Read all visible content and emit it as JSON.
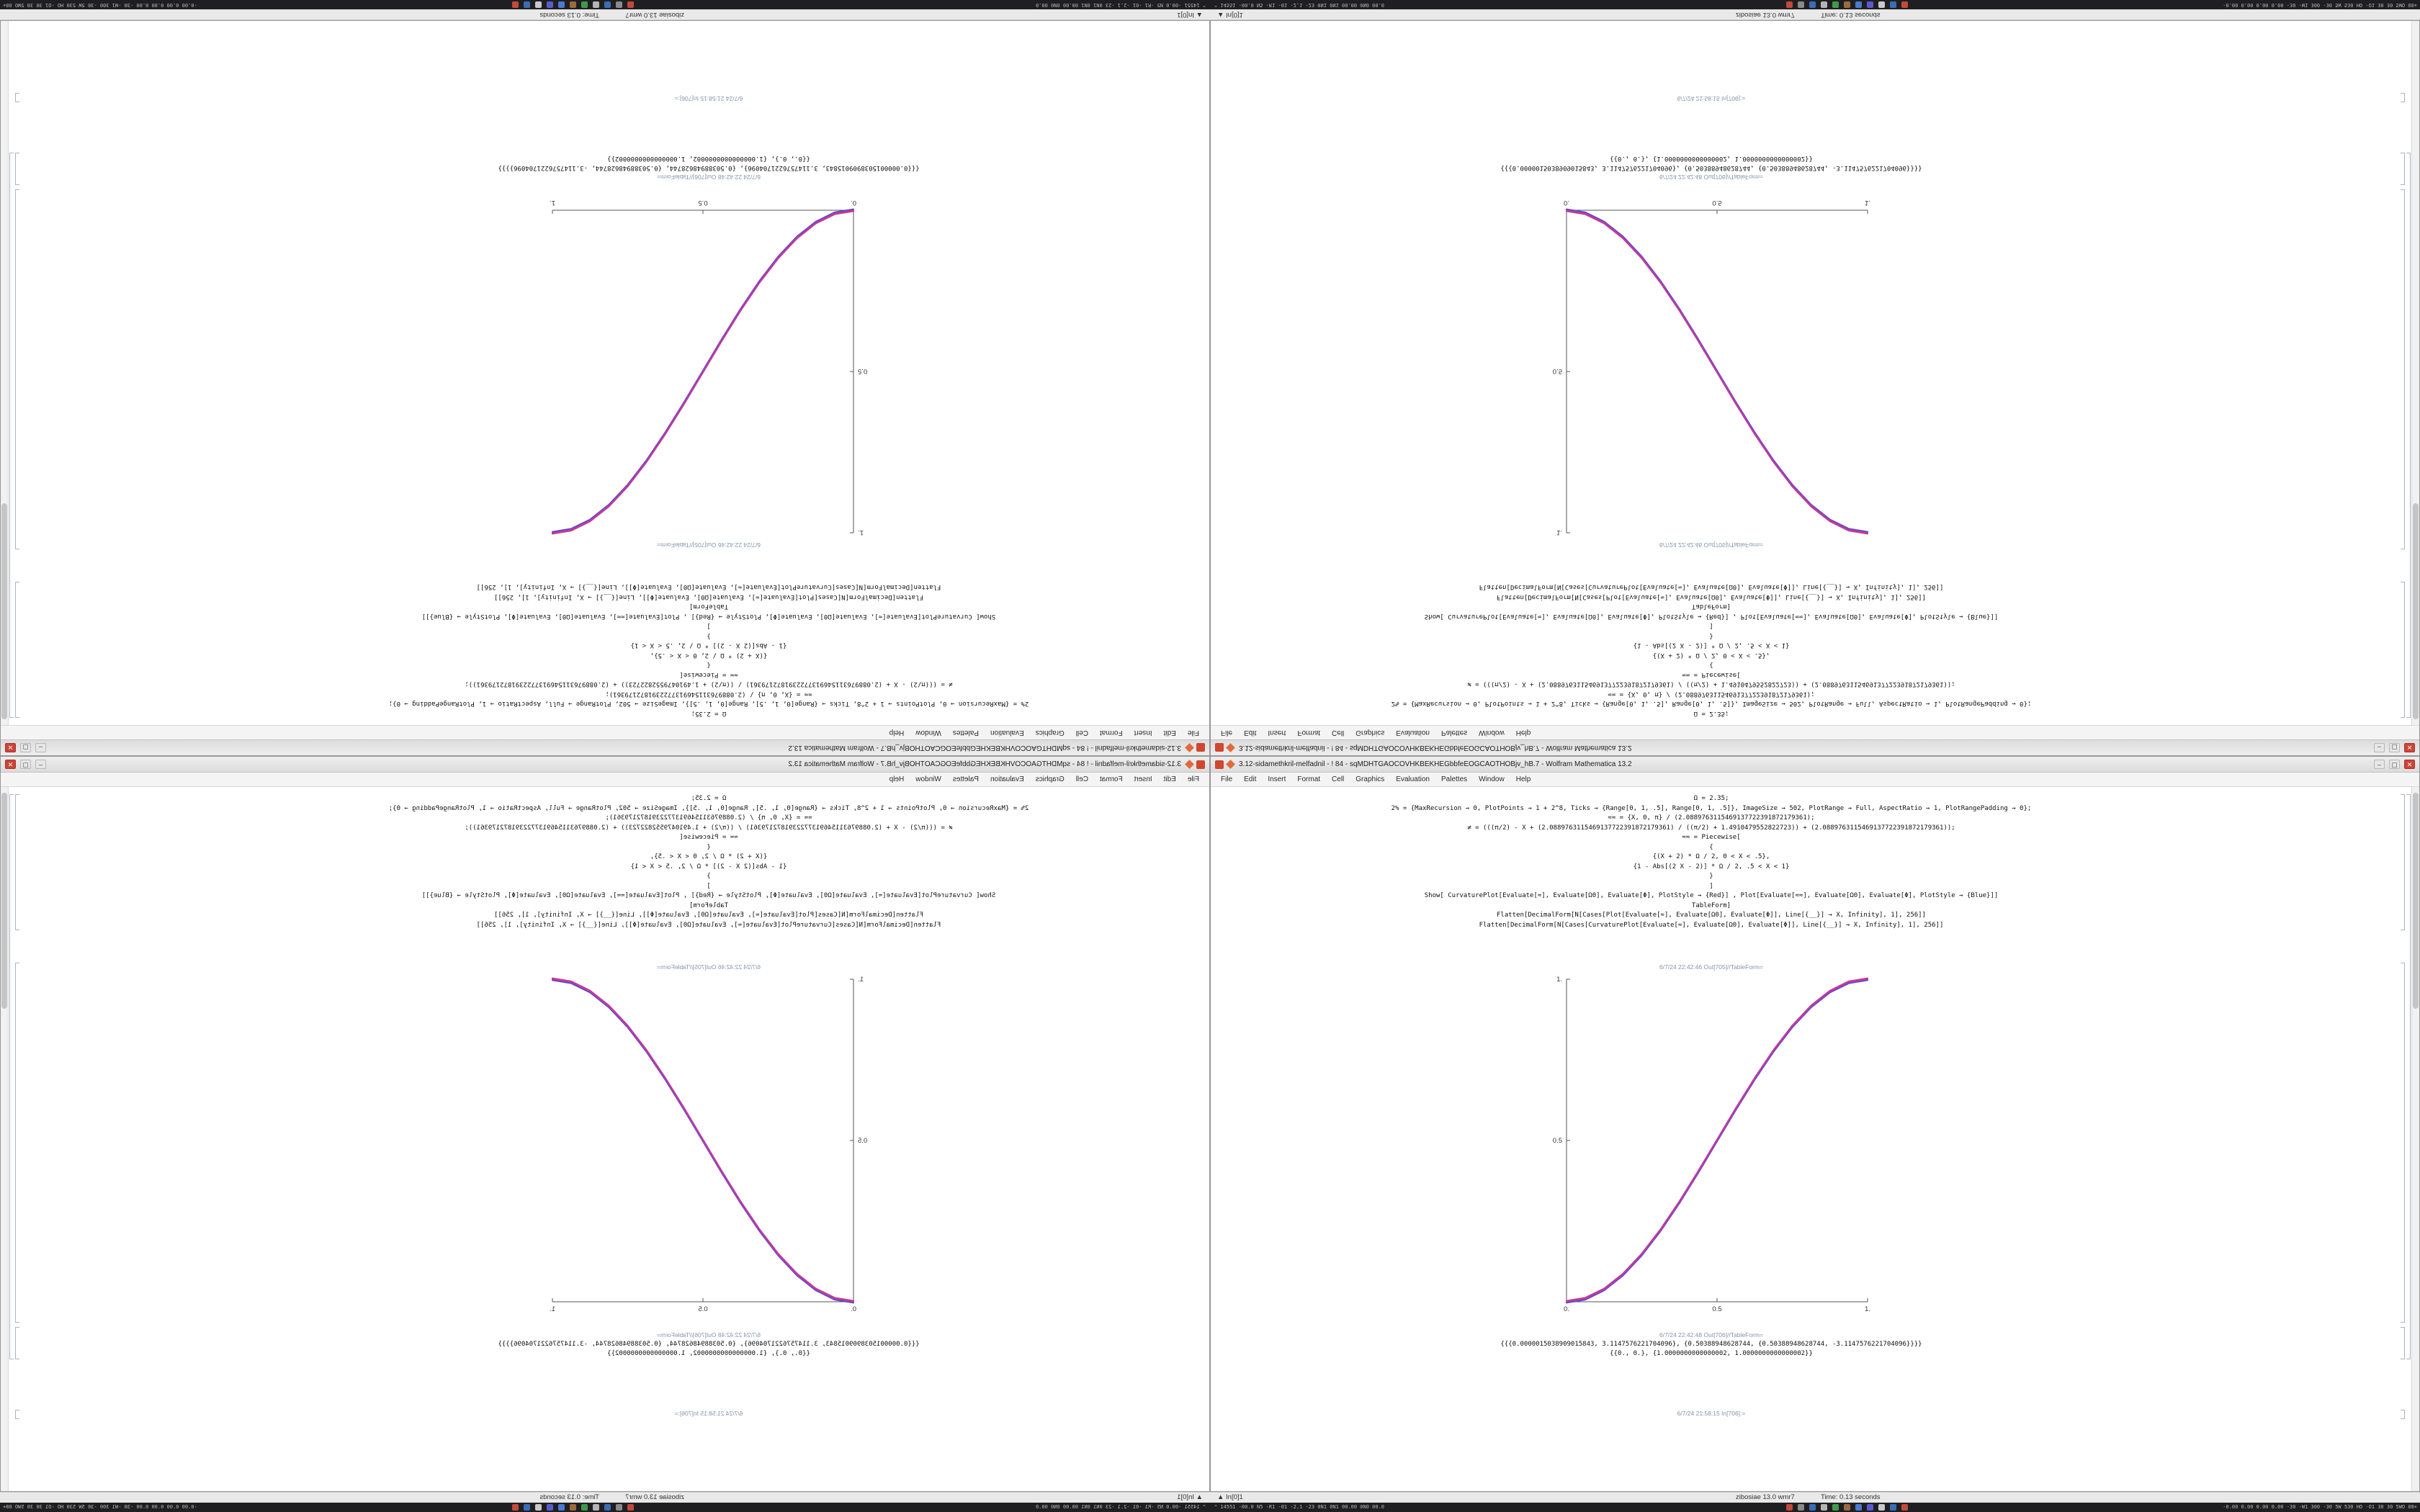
{
  "taskbar": {
    "left_text": "⌃ 14551   -00.0 N5 -R1 -01 -2.1 -23 0N1 0N1 00.00 0N0 00.0",
    "right_text": "-0.00 0.00 0.00 0.00 -30 -W1 300 -30 5W 530 HO -O1 30 30 5WO 08+",
    "icons": [
      {
        "name": "taskbar-icon-red-app",
        "color": "#c14a3a"
      },
      {
        "name": "taskbar-icon-gray-app",
        "color": "#8a8a8a"
      },
      {
        "name": "taskbar-icon-blue-app",
        "color": "#3a6db5"
      },
      {
        "name": "taskbar-icon-silver-app",
        "color": "#b5b5b5"
      },
      {
        "name": "taskbar-icon-green-app",
        "color": "#3f9b4a"
      },
      {
        "name": "taskbar-icon-brown-app",
        "color": "#9b6a3f"
      },
      {
        "name": "taskbar-icon-blue2-app",
        "color": "#4a7ad0"
      },
      {
        "name": "taskbar-icon-indigo-app",
        "color": "#5a5ad0"
      },
      {
        "name": "taskbar-icon-silver2-app",
        "color": "#c9c9c9"
      },
      {
        "name": "taskbar-icon-blue3-app",
        "color": "#3a6db5"
      },
      {
        "name": "taskbar-icon-red2-app",
        "color": "#c14a3a"
      }
    ]
  },
  "statusbar": {
    "left_text": "▲ In[0]1",
    "kernel_text": "zibosiae 13.0 wmr7",
    "time_text": "Time: 0.13 seconds"
  },
  "window": {
    "title": "3.12-sidamethkril-melfadnil - ! 84 - sqMDHTGAOCOVHKBEKHEGbbfeEOGCAOTHOBjv_hB.7 - Wolfram Mathematica 13.2",
    "controls": {
      "minimize": "–",
      "maximize": "▢",
      "close": "✕"
    },
    "menu": [
      "File",
      "Edit",
      "Insert",
      "Format",
      "Cell",
      "Graphics",
      "Evaluation",
      "Palettes",
      "Window",
      "Help"
    ]
  },
  "notebook": {
    "input_lines": [
      "Ω = 2.35;",
      "2% = {MaxRecursion → 0, PlotPoints → 1 + 2^8, Ticks → {Range[0, 1, .5], Range[0, 1, .5]}, ImageSize → 502, PlotRange → Full, AspectRatio → 1, PlotRangePadding → 0};",
      "≈≈ = {X, 0, π} / (2.0889763115469137722391872179361);",
      "≠ = (((π/2) - X + (2.0889763115469137722391872179361) / ((π/2) + 1.4910479552822723)) + (2.0889763115469137722391872179361));",
      "≈≈ = Piecewise[",
      "{",
      "{(X + 2) * Ω / 2, 0 < X < .5},",
      "{1 - Abs[(2 X - 2)] * Ω / 2, .5 < X < 1}",
      "}",
      "]",
      "Show[ CurvaturePlot[Evaluate[≈], Evaluate[Ω0], Evaluate[Φ], PlotStyle → {Red}] , Plot[Evaluate[≈≈], Evaluate[Ω0], Evaluate[Φ], PlotStyle → {Blue}]]",
      "TableForm]",
      "Flatten[DecimalForm[N[Cases[Plot[Evaluate[≈], Evaluate[Ω0], Evaluate[Φ]], Line[{__}] → X, Infinity], 1], 256]]",
      "Flatten[DecimalForm[N[Cases[CurvaturePlot[Evaluate[≈], Evaluate[Ω0], Evaluate[Φ]], Line[{__}] → X, Infinity], 1], 256]]"
    ],
    "out1_label": "6/7/24 22:42:46 Out[705]//TableForm=",
    "out2_label": "6/7/24 22:42:48 Out[706]//TableForm=",
    "output_lines": [
      "{{{0.0000015038909015843, 3.1147576221704096}, {0.50388948628744, {0.50388948628744, -3.1147576221704096}}}}",
      "{{0., 0.}, {1.0000000000000002, 1.0000000000000002}}"
    ],
    "next_in_label": "6/7/24 21:58:15 In[706]:="
  },
  "chart_data": {
    "type": "line",
    "title": "",
    "xlabel": "",
    "ylabel": "",
    "xlim": [
      0,
      1
    ],
    "ylim": [
      0,
      1
    ],
    "grid": false,
    "legend": "none",
    "x_ticks": [
      "0.",
      "0.5",
      "1."
    ],
    "y_ticks": [
      "0.5",
      "1."
    ],
    "x_tick_pos": [
      0,
      0.5,
      1
    ],
    "y_tick_pos": [
      0.5,
      1
    ],
    "x": [
      0,
      0.0625,
      0.125,
      0.1875,
      0.25,
      0.3125,
      0.375,
      0.4375,
      0.5,
      0.5625,
      0.625,
      0.6875,
      0.75,
      0.8125,
      0.875,
      0.9375,
      1
    ],
    "series": [
      {
        "name": "CurvaturePlot (Red)",
        "values": [
          0,
          0.0096,
          0.0381,
          0.0843,
          0.1464,
          0.2222,
          0.3087,
          0.4025,
          0.5,
          0.5975,
          0.6913,
          0.7778,
          0.8536,
          0.9157,
          0.9619,
          0.9904,
          1
        ]
      },
      {
        "name": "Plot (Blue)",
        "values": [
          0,
          0.0096,
          0.0381,
          0.0843,
          0.1464,
          0.2222,
          0.3087,
          0.4025,
          0.5,
          0.5975,
          0.6913,
          0.7778,
          0.8536,
          0.9157,
          0.9619,
          0.9904,
          1
        ]
      }
    ],
    "colors": {
      "red": "#d2407a",
      "blue": "#4a4ad0",
      "blend": "#b13ab1"
    }
  }
}
